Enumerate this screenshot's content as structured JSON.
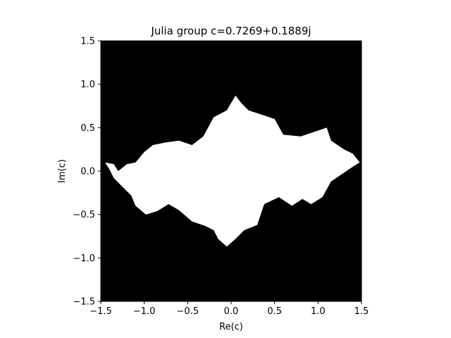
{
  "chart_data": {
    "type": "heatmap",
    "title": "Julia group c=0.7269+0.1889j",
    "xlabel": "Re(c)",
    "ylabel": "Im(c)",
    "xlim": [
      -1.5,
      1.5
    ],
    "ylim": [
      -1.5,
      1.5
    ],
    "xticks": [
      -1.5,
      -1.0,
      -0.5,
      0.0,
      0.5,
      1.0,
      1.5
    ],
    "xtick_labels": [
      "−1.5",
      "−1.0",
      "−0.5",
      "0.0",
      "0.5",
      "1.0",
      "1.5"
    ],
    "yticks": [
      1.5,
      1.0,
      0.5,
      0.0,
      -0.5,
      -1.0,
      -1.5
    ],
    "ytick_labels": [
      "1.5",
      "1.0",
      "0.5",
      "0.0",
      "−0.5",
      "−1.0",
      "−1.5"
    ],
    "grid": false,
    "colors": {
      "background": "#000000",
      "set": "#ffffff"
    },
    "region_boundary": [
      [
        -1.45,
        0.1
      ],
      [
        -1.4,
        0.02
      ],
      [
        -1.35,
        -0.08
      ],
      [
        -1.25,
        -0.18
      ],
      [
        -1.15,
        -0.28
      ],
      [
        -1.1,
        -0.4
      ],
      [
        -0.98,
        -0.5
      ],
      [
        -0.85,
        -0.46
      ],
      [
        -0.72,
        -0.38
      ],
      [
        -0.6,
        -0.45
      ],
      [
        -0.45,
        -0.58
      ],
      [
        -0.3,
        -0.63
      ],
      [
        -0.2,
        -0.68
      ],
      [
        -0.15,
        -0.78
      ],
      [
        -0.05,
        -0.87
      ],
      [
        0.05,
        -0.78
      ],
      [
        0.15,
        -0.68
      ],
      [
        0.3,
        -0.62
      ],
      [
        0.38,
        -0.38
      ],
      [
        0.55,
        -0.3
      ],
      [
        0.7,
        -0.4
      ],
      [
        0.82,
        -0.32
      ],
      [
        0.92,
        -0.38
      ],
      [
        1.05,
        -0.3
      ],
      [
        1.15,
        -0.12
      ],
      [
        1.25,
        -0.05
      ],
      [
        1.4,
        0.05
      ],
      [
        1.48,
        0.1
      ],
      [
        1.4,
        0.2
      ],
      [
        1.3,
        0.25
      ],
      [
        1.15,
        0.35
      ],
      [
        1.1,
        0.5
      ],
      [
        0.95,
        0.45
      ],
      [
        0.8,
        0.4
      ],
      [
        0.6,
        0.42
      ],
      [
        0.5,
        0.6
      ],
      [
        0.35,
        0.65
      ],
      [
        0.2,
        0.7
      ],
      [
        0.12,
        0.78
      ],
      [
        0.05,
        0.87
      ],
      [
        -0.05,
        0.7
      ],
      [
        -0.2,
        0.62
      ],
      [
        -0.32,
        0.4
      ],
      [
        -0.45,
        0.3
      ],
      [
        -0.6,
        0.35
      ],
      [
        -0.75,
        0.33
      ],
      [
        -0.9,
        0.3
      ],
      [
        -1.0,
        0.22
      ],
      [
        -1.1,
        0.1
      ],
      [
        -1.2,
        0.08
      ],
      [
        -1.3,
        0.0
      ],
      [
        -1.35,
        0.08
      ]
    ]
  }
}
